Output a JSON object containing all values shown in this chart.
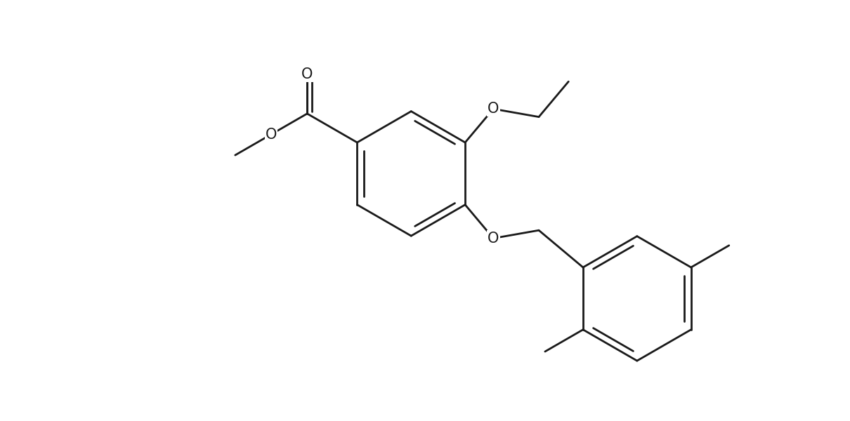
{
  "background_color": "#ffffff",
  "line_color": "#1a1a1a",
  "line_width": 2.0,
  "figsize": [
    12.1,
    6.0
  ],
  "dpi": 100,
  "xlim": [
    -4.5,
    9.5
  ],
  "ylim": [
    -5.5,
    3.5
  ]
}
